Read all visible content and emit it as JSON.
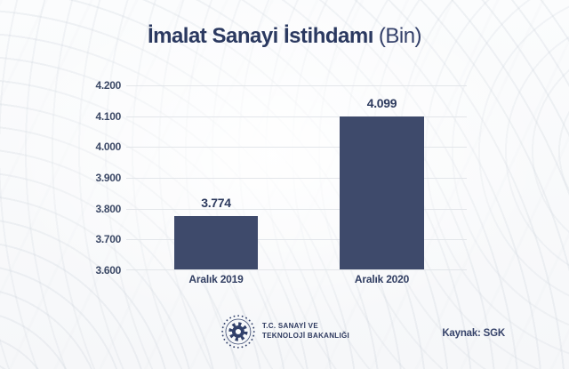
{
  "title": {
    "main": "İmalat Sanayi İstihdamı",
    "suffix": "(Bin)"
  },
  "chart_data": {
    "type": "bar",
    "title": "İmalat Sanayi İstihdamı (Bin)",
    "categories": [
      "Aralık 2019",
      "Aralık 2020"
    ],
    "values": [
      3774,
      4099
    ],
    "value_labels": [
      "3.774",
      "4.099"
    ],
    "y_ticks": [
      "4.200",
      "4.100",
      "4.000",
      "3.900",
      "3.800",
      "3.700",
      "3.600"
    ],
    "ylim": [
      3600,
      4200
    ],
    "grid": true,
    "legend": false,
    "bar_color": "#3e4a6b"
  },
  "footer": {
    "ministry_line1": "T.C. SANAYİ VE",
    "ministry_line2": "TEKNOLOJİ BAKANLIĞI",
    "source": "Kaynak: SGK"
  },
  "colors": {
    "accent_navy": "#2b3960",
    "bar": "#3e4a6b",
    "gridline": "#e3e6ea",
    "background": "#f7f8fa"
  }
}
